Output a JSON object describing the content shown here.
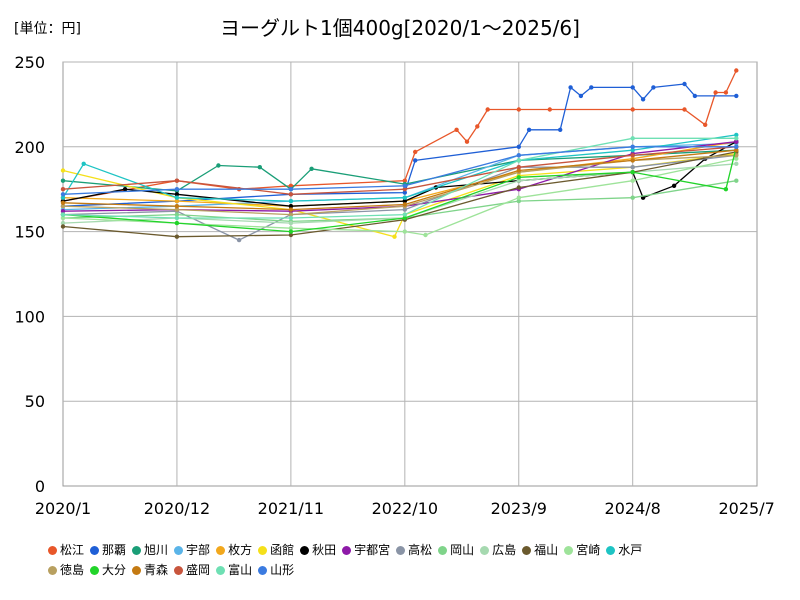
{
  "unit_label": "[単位：円]",
  "title": "ヨーグルト1個400g[2020/1～2025/6]",
  "chart_data": {
    "type": "line",
    "title": "ヨーグルト1個400g[2020/1～2025/6]",
    "unit": "[単位：円]",
    "xlabel": "",
    "ylabel": "",
    "x_ticks": [
      "2020/1",
      "2020/12",
      "2021/11",
      "2022/10",
      "2023/9",
      "2024/8",
      "2025/7"
    ],
    "y_ticks": [
      0,
      50,
      100,
      150,
      200,
      250
    ],
    "ylim": [
      0,
      250
    ],
    "grid": true,
    "legend_placement": "bottom",
    "x_start": "2020/1",
    "months": 67,
    "series": [
      {
        "name": "松江",
        "color": "#e8572a",
        "values": [
          {
            "x": "2020/1",
            "y": 168
          },
          {
            "x": "2020/12",
            "y": 180
          },
          {
            "x": "2021/6",
            "y": 175
          },
          {
            "x": "2021/11",
            "y": 177
          },
          {
            "x": "2022/10",
            "y": 180
          },
          {
            "x": "2022/11",
            "y": 197
          },
          {
            "x": "2023/3",
            "y": 210
          },
          {
            "x": "2023/4",
            "y": 203
          },
          {
            "x": "2023/5",
            "y": 212
          },
          {
            "x": "2023/6",
            "y": 222
          },
          {
            "x": "2023/9",
            "y": 222
          },
          {
            "x": "2023/12",
            "y": 222
          },
          {
            "x": "2024/8",
            "y": 222
          },
          {
            "x": "2025/1",
            "y": 222
          },
          {
            "x": "2025/3",
            "y": 213
          },
          {
            "x": "2025/4",
            "y": 232
          },
          {
            "x": "2025/5",
            "y": 232
          },
          {
            "x": "2025/6",
            "y": 245
          }
        ]
      },
      {
        "name": "那覇",
        "color": "#1f5fd6",
        "values": [
          {
            "x": "2020/1",
            "y": 165
          },
          {
            "x": "2020/12",
            "y": 168
          },
          {
            "x": "2021/11",
            "y": 172
          },
          {
            "x": "2022/10",
            "y": 173
          },
          {
            "x": "2022/11",
            "y": 192
          },
          {
            "x": "2023/9",
            "y": 200
          },
          {
            "x": "2023/10",
            "y": 210
          },
          {
            "x": "2024/1",
            "y": 210
          },
          {
            "x": "2024/2",
            "y": 235
          },
          {
            "x": "2024/3",
            "y": 230
          },
          {
            "x": "2024/4",
            "y": 235
          },
          {
            "x": "2024/8",
            "y": 235
          },
          {
            "x": "2024/9",
            "y": 228
          },
          {
            "x": "2024/10",
            "y": 235
          },
          {
            "x": "2025/1",
            "y": 237
          },
          {
            "x": "2025/2",
            "y": 230
          },
          {
            "x": "2025/6",
            "y": 230
          }
        ]
      },
      {
        "name": "旭川",
        "color": "#1a9e77",
        "values": [
          {
            "x": "2020/1",
            "y": 180
          },
          {
            "x": "2020/12",
            "y": 174
          },
          {
            "x": "2021/4",
            "y": 189
          },
          {
            "x": "2021/8",
            "y": 188
          },
          {
            "x": "2021/11",
            "y": 175
          },
          {
            "x": "2022/1",
            "y": 187
          },
          {
            "x": "2022/10",
            "y": 178
          },
          {
            "x": "2023/9",
            "y": 192
          },
          {
            "x": "2024/8",
            "y": 195
          },
          {
            "x": "2025/6",
            "y": 198
          }
        ]
      },
      {
        "name": "宇部",
        "color": "#5ab4e8",
        "values": [
          {
            "x": "2020/1",
            "y": 163
          },
          {
            "x": "2020/12",
            "y": 165
          },
          {
            "x": "2021/11",
            "y": 168
          },
          {
            "x": "2022/10",
            "y": 170
          },
          {
            "x": "2023/9",
            "y": 195
          },
          {
            "x": "2024/8",
            "y": 200
          },
          {
            "x": "2025/6",
            "y": 202
          }
        ]
      },
      {
        "name": "枚方",
        "color": "#f2a81d",
        "values": [
          {
            "x": "2020/1",
            "y": 170
          },
          {
            "x": "2020/12",
            "y": 168
          },
          {
            "x": "2021/11",
            "y": 165
          },
          {
            "x": "2022/10",
            "y": 168
          },
          {
            "x": "2023/9",
            "y": 185
          },
          {
            "x": "2024/8",
            "y": 193
          },
          {
            "x": "2025/6",
            "y": 203
          }
        ]
      },
      {
        "name": "函館",
        "color": "#f5e01a",
        "values": [
          {
            "x": "2020/1",
            "y": 186
          },
          {
            "x": "2020/12",
            "y": 170
          },
          {
            "x": "2021/11",
            "y": 163
          },
          {
            "x": "2022/9",
            "y": 147
          },
          {
            "x": "2022/10",
            "y": 160
          },
          {
            "x": "2023/9",
            "y": 183
          },
          {
            "x": "2024/8",
            "y": 188
          },
          {
            "x": "2025/6",
            "y": 196
          }
        ]
      },
      {
        "name": "秋田",
        "color": "#000000",
        "values": [
          {
            "x": "2020/1",
            "y": 168
          },
          {
            "x": "2020/7",
            "y": 175
          },
          {
            "x": "2020/12",
            "y": 172
          },
          {
            "x": "2021/11",
            "y": 165
          },
          {
            "x": "2022/10",
            "y": 168
          },
          {
            "x": "2023/1",
            "y": 176
          },
          {
            "x": "2023/9",
            "y": 180
          },
          {
            "x": "2024/8",
            "y": 185
          },
          {
            "x": "2024/9",
            "y": 170
          },
          {
            "x": "2024/12",
            "y": 177
          },
          {
            "x": "2025/3",
            "y": 193
          },
          {
            "x": "2025/6",
            "y": 203
          }
        ]
      },
      {
        "name": "宇都宮",
        "color": "#8e1aa8",
        "values": [
          {
            "x": "2020/1",
            "y": 162
          },
          {
            "x": "2020/12",
            "y": 163
          },
          {
            "x": "2021/11",
            "y": 162
          },
          {
            "x": "2022/10",
            "y": 165
          },
          {
            "x": "2023/9",
            "y": 175
          },
          {
            "x": "2024/8",
            "y": 196
          },
          {
            "x": "2025/6",
            "y": 203
          }
        ]
      },
      {
        "name": "高松",
        "color": "#8a94a6",
        "values": [
          {
            "x": "2020/1",
            "y": 160
          },
          {
            "x": "2020/12",
            "y": 162
          },
          {
            "x": "2021/6",
            "y": 145
          },
          {
            "x": "2021/11",
            "y": 160
          },
          {
            "x": "2022/10",
            "y": 163
          },
          {
            "x": "2023/9",
            "y": 188
          },
          {
            "x": "2024/8",
            "y": 188
          },
          {
            "x": "2025/6",
            "y": 195
          }
        ]
      },
      {
        "name": "岡山",
        "color": "#7fd48a",
        "values": [
          {
            "x": "2020/1",
            "y": 158
          },
          {
            "x": "2020/12",
            "y": 160
          },
          {
            "x": "2021/11",
            "y": 156
          },
          {
            "x": "2022/10",
            "y": 158
          },
          {
            "x": "2023/9",
            "y": 168
          },
          {
            "x": "2024/8",
            "y": 170
          },
          {
            "x": "2025/6",
            "y": 180
          }
        ]
      },
      {
        "name": "広島",
        "color": "#a6d9b0",
        "values": [
          {
            "x": "2020/1",
            "y": 155
          },
          {
            "x": "2020/12",
            "y": 158
          },
          {
            "x": "2021/11",
            "y": 155
          },
          {
            "x": "2022/10",
            "y": 158
          },
          {
            "x": "2023/9",
            "y": 180
          },
          {
            "x": "2024/8",
            "y": 185
          },
          {
            "x": "2025/6",
            "y": 190
          }
        ]
      },
      {
        "name": "福山",
        "color": "#6b5a2e",
        "values": [
          {
            "x": "2020/1",
            "y": 153
          },
          {
            "x": "2020/12",
            "y": 147
          },
          {
            "x": "2021/11",
            "y": 148
          },
          {
            "x": "2022/10",
            "y": 157
          },
          {
            "x": "2023/9",
            "y": 176
          },
          {
            "x": "2024/8",
            "y": 185
          },
          {
            "x": "2025/6",
            "y": 197
          }
        ]
      },
      {
        "name": "宮崎",
        "color": "#9ee39a",
        "values": [
          {
            "x": "2020/1",
            "y": 158
          },
          {
            "x": "2020/12",
            "y": 155
          },
          {
            "x": "2021/11",
            "y": 152
          },
          {
            "x": "2022/10",
            "y": 150
          },
          {
            "x": "2022/12",
            "y": 148
          },
          {
            "x": "2023/9",
            "y": 170
          },
          {
            "x": "2024/8",
            "y": 180
          },
          {
            "x": "2025/6",
            "y": 193
          }
        ]
      },
      {
        "name": "水戸",
        "color": "#1ec4c4",
        "values": [
          {
            "x": "2020/1",
            "y": 170
          },
          {
            "x": "2020/3",
            "y": 190
          },
          {
            "x": "2020/12",
            "y": 170
          },
          {
            "x": "2021/11",
            "y": 168
          },
          {
            "x": "2022/10",
            "y": 170
          },
          {
            "x": "2023/9",
            "y": 192
          },
          {
            "x": "2024/8",
            "y": 198
          },
          {
            "x": "2025/6",
            "y": 207
          }
        ]
      },
      {
        "name": "徳島",
        "color": "#b8a060",
        "values": [
          {
            "x": "2020/1",
            "y": 165
          },
          {
            "x": "2020/12",
            "y": 163
          },
          {
            "x": "2021/11",
            "y": 160
          },
          {
            "x": "2022/10",
            "y": 165
          },
          {
            "x": "2023/9",
            "y": 185
          },
          {
            "x": "2024/8",
            "y": 192
          },
          {
            "x": "2025/6",
            "y": 195
          }
        ]
      },
      {
        "name": "大分",
        "color": "#22d42a",
        "values": [
          {
            "x": "2020/1",
            "y": 160
          },
          {
            "x": "2020/12",
            "y": 155
          },
          {
            "x": "2021/11",
            "y": 150
          },
          {
            "x": "2022/10",
            "y": 158
          },
          {
            "x": "2023/9",
            "y": 182
          },
          {
            "x": "2024/8",
            "y": 185
          },
          {
            "x": "2025/5",
            "y": 175
          },
          {
            "x": "2025/6",
            "y": 200
          }
        ]
      },
      {
        "name": "青森",
        "color": "#c47a12",
        "values": [
          {
            "x": "2020/1",
            "y": 167
          },
          {
            "x": "2020/12",
            "y": 165
          },
          {
            "x": "2021/11",
            "y": 163
          },
          {
            "x": "2022/10",
            "y": 166
          },
          {
            "x": "2023/9",
            "y": 186
          },
          {
            "x": "2024/8",
            "y": 192
          },
          {
            "x": "2025/6",
            "y": 198
          }
        ]
      },
      {
        "name": "盛岡",
        "color": "#c8553d",
        "values": [
          {
            "x": "2020/1",
            "y": 175
          },
          {
            "x": "2020/12",
            "y": 180
          },
          {
            "x": "2021/11",
            "y": 172
          },
          {
            "x": "2022/10",
            "y": 175
          },
          {
            "x": "2023/9",
            "y": 188
          },
          {
            "x": "2024/8",
            "y": 195
          },
          {
            "x": "2025/6",
            "y": 200
          }
        ]
      },
      {
        "name": "富山",
        "color": "#6fe0b4",
        "values": [
          {
            "x": "2020/1",
            "y": 160
          },
          {
            "x": "2020/12",
            "y": 158
          },
          {
            "x": "2021/11",
            "y": 158
          },
          {
            "x": "2022/10",
            "y": 160
          },
          {
            "x": "2023/9",
            "y": 192
          },
          {
            "x": "2024/8",
            "y": 205
          },
          {
            "x": "2025/6",
            "y": 205
          }
        ]
      },
      {
        "name": "山形",
        "color": "#3b7be0",
        "values": [
          {
            "x": "2020/1",
            "y": 172
          },
          {
            "x": "2020/12",
            "y": 175
          },
          {
            "x": "2021/11",
            "y": 175
          },
          {
            "x": "2022/10",
            "y": 177
          },
          {
            "x": "2023/9",
            "y": 195
          },
          {
            "x": "2024/8",
            "y": 200
          },
          {
            "x": "2025/6",
            "y": 200
          }
        ]
      }
    ]
  }
}
